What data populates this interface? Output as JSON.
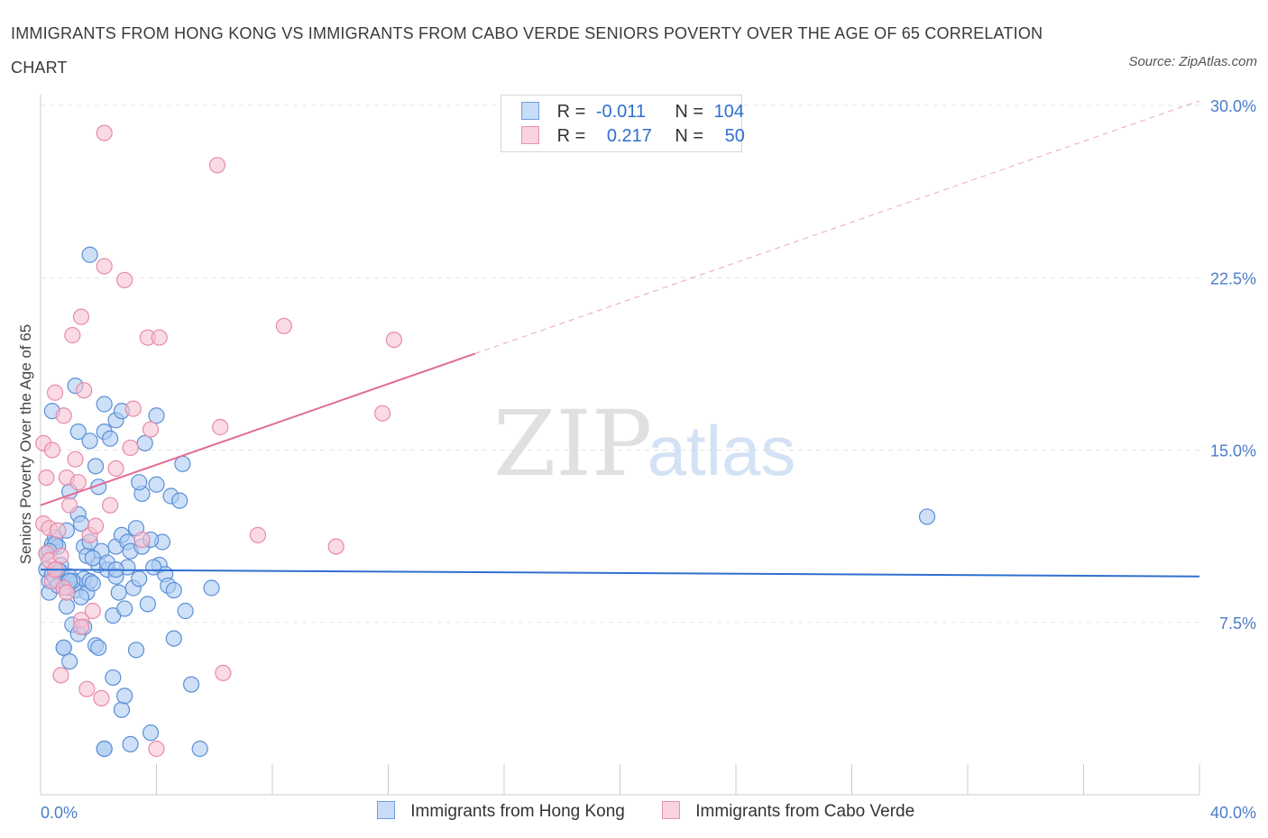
{
  "header": {
    "title": "IMMIGRANTS FROM HONG KONG VS IMMIGRANTS FROM CABO VERDE SENIORS POVERTY OVER THE AGE OF 65 CORRELATION CHART",
    "source": "Source: ZipAtlas.com"
  },
  "legend": {
    "rows": [
      {
        "r_label": "R =",
        "r_value": "-0.011",
        "n_label": "N =",
        "n_value": "104"
      },
      {
        "r_label": "R =",
        "r_value": "0.217",
        "n_label": "N =",
        "n_value": "50"
      }
    ]
  },
  "bottom_legend": {
    "series1": "Immigrants from Hong Kong",
    "series2": "Immigrants from Cabo Verde"
  },
  "watermark": {
    "zip": "ZIP",
    "atlas": "atlas"
  },
  "colors": {
    "blue_fill": "#aecbf2",
    "blue_stroke": "#5b8fd6",
    "blue_line": "#2f6fd0",
    "pink_fill": "#f7c3d3",
    "pink_stroke": "#e88aa8",
    "pink_line": "#e06b96",
    "tick_text": "#4a7cc9"
  },
  "chart_data": {
    "type": "scatter",
    "title": "IMMIGRANTS FROM HONG KONG VS IMMIGRANTS FROM CABO VERDE SENIORS POVERTY OVER THE AGE OF 65 CORRELATION CHART",
    "xlabel": "",
    "ylabel": "Seniors Poverty Over the Age of 65",
    "xlim": [
      0,
      40
    ],
    "ylim": [
      0,
      30
    ],
    "x_tick_labels": [
      "0.0%",
      "40.0%"
    ],
    "y_ticks": [
      7.5,
      15.0,
      22.5,
      30.0
    ],
    "y_tick_labels": [
      "7.5%",
      "15.0%",
      "22.5%",
      "30.0%"
    ],
    "series": [
      {
        "name": "Immigrants from Hong Kong",
        "R": -0.011,
        "N": 104,
        "trend": {
          "x": [
            0,
            40
          ],
          "y": [
            9.8,
            9.5
          ],
          "dashed_from_x": null
        },
        "points": [
          [
            0.2,
            10.5
          ],
          [
            0.2,
            9.8
          ],
          [
            0.3,
            9.3
          ],
          [
            0.3,
            8.8
          ],
          [
            0.4,
            9.6
          ],
          [
            0.4,
            10.9
          ],
          [
            0.5,
            11.2
          ],
          [
            0.5,
            9.4
          ],
          [
            0.6,
            10.8
          ],
          [
            0.6,
            9.1
          ],
          [
            0.7,
            9.7
          ],
          [
            0.7,
            10.0
          ],
          [
            0.8,
            9.0
          ],
          [
            0.8,
            6.4
          ],
          [
            0.9,
            8.2
          ],
          [
            0.9,
            11.5
          ],
          [
            1.0,
            5.8
          ],
          [
            1.0,
            13.2
          ],
          [
            1.0,
            9.5
          ],
          [
            1.1,
            7.4
          ],
          [
            1.2,
            9.2
          ],
          [
            1.2,
            8.9
          ],
          [
            1.3,
            7.0
          ],
          [
            1.3,
            12.2
          ],
          [
            1.4,
            11.8
          ],
          [
            1.5,
            9.4
          ],
          [
            1.5,
            10.8
          ],
          [
            1.6,
            10.4
          ],
          [
            1.6,
            8.8
          ],
          [
            1.7,
            11.0
          ],
          [
            1.7,
            9.3
          ],
          [
            1.8,
            9.2
          ],
          [
            1.9,
            6.5
          ],
          [
            2.0,
            10.0
          ],
          [
            2.0,
            13.4
          ],
          [
            2.1,
            10.6
          ],
          [
            2.2,
            15.8
          ],
          [
            2.2,
            2.0
          ],
          [
            2.3,
            9.8
          ],
          [
            2.4,
            15.5
          ],
          [
            2.5,
            7.8
          ],
          [
            2.5,
            5.1
          ],
          [
            2.6,
            16.3
          ],
          [
            2.6,
            10.8
          ],
          [
            2.6,
            9.5
          ],
          [
            2.7,
            8.8
          ],
          [
            2.8,
            3.7
          ],
          [
            2.8,
            11.3
          ],
          [
            2.9,
            8.1
          ],
          [
            3.0,
            11.0
          ],
          [
            3.0,
            9.9
          ],
          [
            3.1,
            2.2
          ],
          [
            3.1,
            10.6
          ],
          [
            3.2,
            9.0
          ],
          [
            3.3,
            11.6
          ],
          [
            3.4,
            9.4
          ],
          [
            3.5,
            13.1
          ],
          [
            3.5,
            10.8
          ],
          [
            3.6,
            15.3
          ],
          [
            3.7,
            8.3
          ],
          [
            3.8,
            2.7
          ],
          [
            4.0,
            16.5
          ],
          [
            4.0,
            13.5
          ],
          [
            4.1,
            10.0
          ],
          [
            4.3,
            9.6
          ],
          [
            4.4,
            9.1
          ],
          [
            4.5,
            13.0
          ],
          [
            4.6,
            8.9
          ],
          [
            4.6,
            6.8
          ],
          [
            4.8,
            12.8
          ],
          [
            4.9,
            14.4
          ],
          [
            5.0,
            8.0
          ],
          [
            5.2,
            4.8
          ],
          [
            5.5,
            2.0
          ],
          [
            5.9,
            9.0
          ],
          [
            0.4,
            16.7
          ],
          [
            0.5,
            10.9
          ],
          [
            1.2,
            17.8
          ],
          [
            1.3,
            15.8
          ],
          [
            1.7,
            15.4
          ],
          [
            1.9,
            14.3
          ],
          [
            2.2,
            17.0
          ],
          [
            2.8,
            16.7
          ],
          [
            0.3,
            10.6
          ],
          [
            0.6,
            9.8
          ],
          [
            0.9,
            9.0
          ],
          [
            1.1,
            9.3
          ],
          [
            1.4,
            8.6
          ],
          [
            1.8,
            10.3
          ],
          [
            2.3,
            10.1
          ],
          [
            2.6,
            9.8
          ],
          [
            3.4,
            13.6
          ],
          [
            3.9,
            9.9
          ],
          [
            4.2,
            11.0
          ],
          [
            1.7,
            23.5
          ],
          [
            2.0,
            6.4
          ],
          [
            2.2,
            2.0
          ],
          [
            2.9,
            4.3
          ],
          [
            3.3,
            6.3
          ],
          [
            3.8,
            11.1
          ],
          [
            0.8,
            6.4
          ],
          [
            1.5,
            7.3
          ],
          [
            1.0,
            9.3
          ],
          [
            30.6,
            12.1
          ]
        ]
      },
      {
        "name": "Immigrants from Cabo Verde",
        "R": 0.217,
        "N": 50,
        "trend": {
          "x": [
            0,
            40
          ],
          "y": [
            12.6,
            30.2
          ],
          "dashed_from_x": 15.0
        },
        "points": [
          [
            0.1,
            15.3
          ],
          [
            0.1,
            11.8
          ],
          [
            0.2,
            13.8
          ],
          [
            0.2,
            10.5
          ],
          [
            0.3,
            11.6
          ],
          [
            0.3,
            10.2
          ],
          [
            0.4,
            15.0
          ],
          [
            0.4,
            9.3
          ],
          [
            0.5,
            17.5
          ],
          [
            0.5,
            9.8
          ],
          [
            0.6,
            11.5
          ],
          [
            0.7,
            10.4
          ],
          [
            0.7,
            5.2
          ],
          [
            0.8,
            16.5
          ],
          [
            0.8,
            9.0
          ],
          [
            0.9,
            13.8
          ],
          [
            1.0,
            12.6
          ],
          [
            1.1,
            20.0
          ],
          [
            1.2,
            14.6
          ],
          [
            1.3,
            13.6
          ],
          [
            1.4,
            20.8
          ],
          [
            1.4,
            7.6
          ],
          [
            1.5,
            17.6
          ],
          [
            1.6,
            4.6
          ],
          [
            1.7,
            11.3
          ],
          [
            1.8,
            8.0
          ],
          [
            1.9,
            11.7
          ],
          [
            2.1,
            4.2
          ],
          [
            2.2,
            28.8
          ],
          [
            2.2,
            23.0
          ],
          [
            2.4,
            12.6
          ],
          [
            2.6,
            14.2
          ],
          [
            2.9,
            22.4
          ],
          [
            3.1,
            15.1
          ],
          [
            3.2,
            16.8
          ],
          [
            3.5,
            11.1
          ],
          [
            3.7,
            19.9
          ],
          [
            3.8,
            15.9
          ],
          [
            4.1,
            19.9
          ],
          [
            4.0,
            2.0
          ],
          [
            6.1,
            27.4
          ],
          [
            6.2,
            16.0
          ],
          [
            6.3,
            5.3
          ],
          [
            7.5,
            11.3
          ],
          [
            8.4,
            20.4
          ],
          [
            10.2,
            10.8
          ],
          [
            11.8,
            16.6
          ],
          [
            12.2,
            19.8
          ],
          [
            0.9,
            8.8
          ],
          [
            1.4,
            7.3
          ]
        ]
      }
    ]
  }
}
